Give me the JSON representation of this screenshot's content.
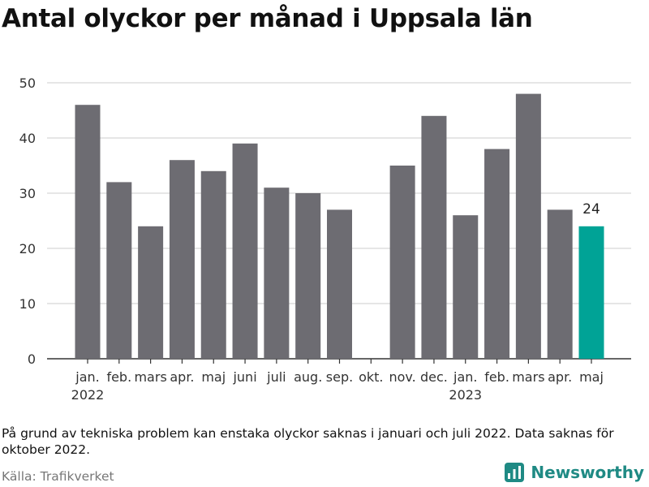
{
  "title": "Antal olyckor per månad i Uppsala län",
  "note": "På grund av tekniska problem kan enstaka olyckor saknas i januari och juli 2022. Data saknas för oktober 2022.",
  "source": "Källa: Trafikverket",
  "brand": "Newsworthy",
  "colors": {
    "bar": "#6d6c72",
    "highlight": "#00a396",
    "grid": "#dddddd",
    "brand": "#1f8a84"
  },
  "chart_data": {
    "type": "bar",
    "categories": [
      "jan.",
      "feb.",
      "mars",
      "apr.",
      "maj",
      "juni",
      "juli",
      "aug.",
      "sep.",
      "okt.",
      "nov.",
      "dec.",
      "jan.",
      "feb.",
      "mars",
      "apr.",
      "maj"
    ],
    "year_labels": [
      {
        "index": 0,
        "label": "2022"
      },
      {
        "index": 12,
        "label": "2023"
      }
    ],
    "values": [
      46,
      32,
      24,
      36,
      34,
      39,
      31,
      30,
      27,
      null,
      35,
      44,
      26,
      38,
      48,
      27,
      24
    ],
    "highlight_index": 16,
    "highlight_label": "24",
    "yticks": [
      0,
      10,
      20,
      30,
      40,
      50
    ],
    "ylim": [
      0,
      50
    ],
    "grid": true
  }
}
